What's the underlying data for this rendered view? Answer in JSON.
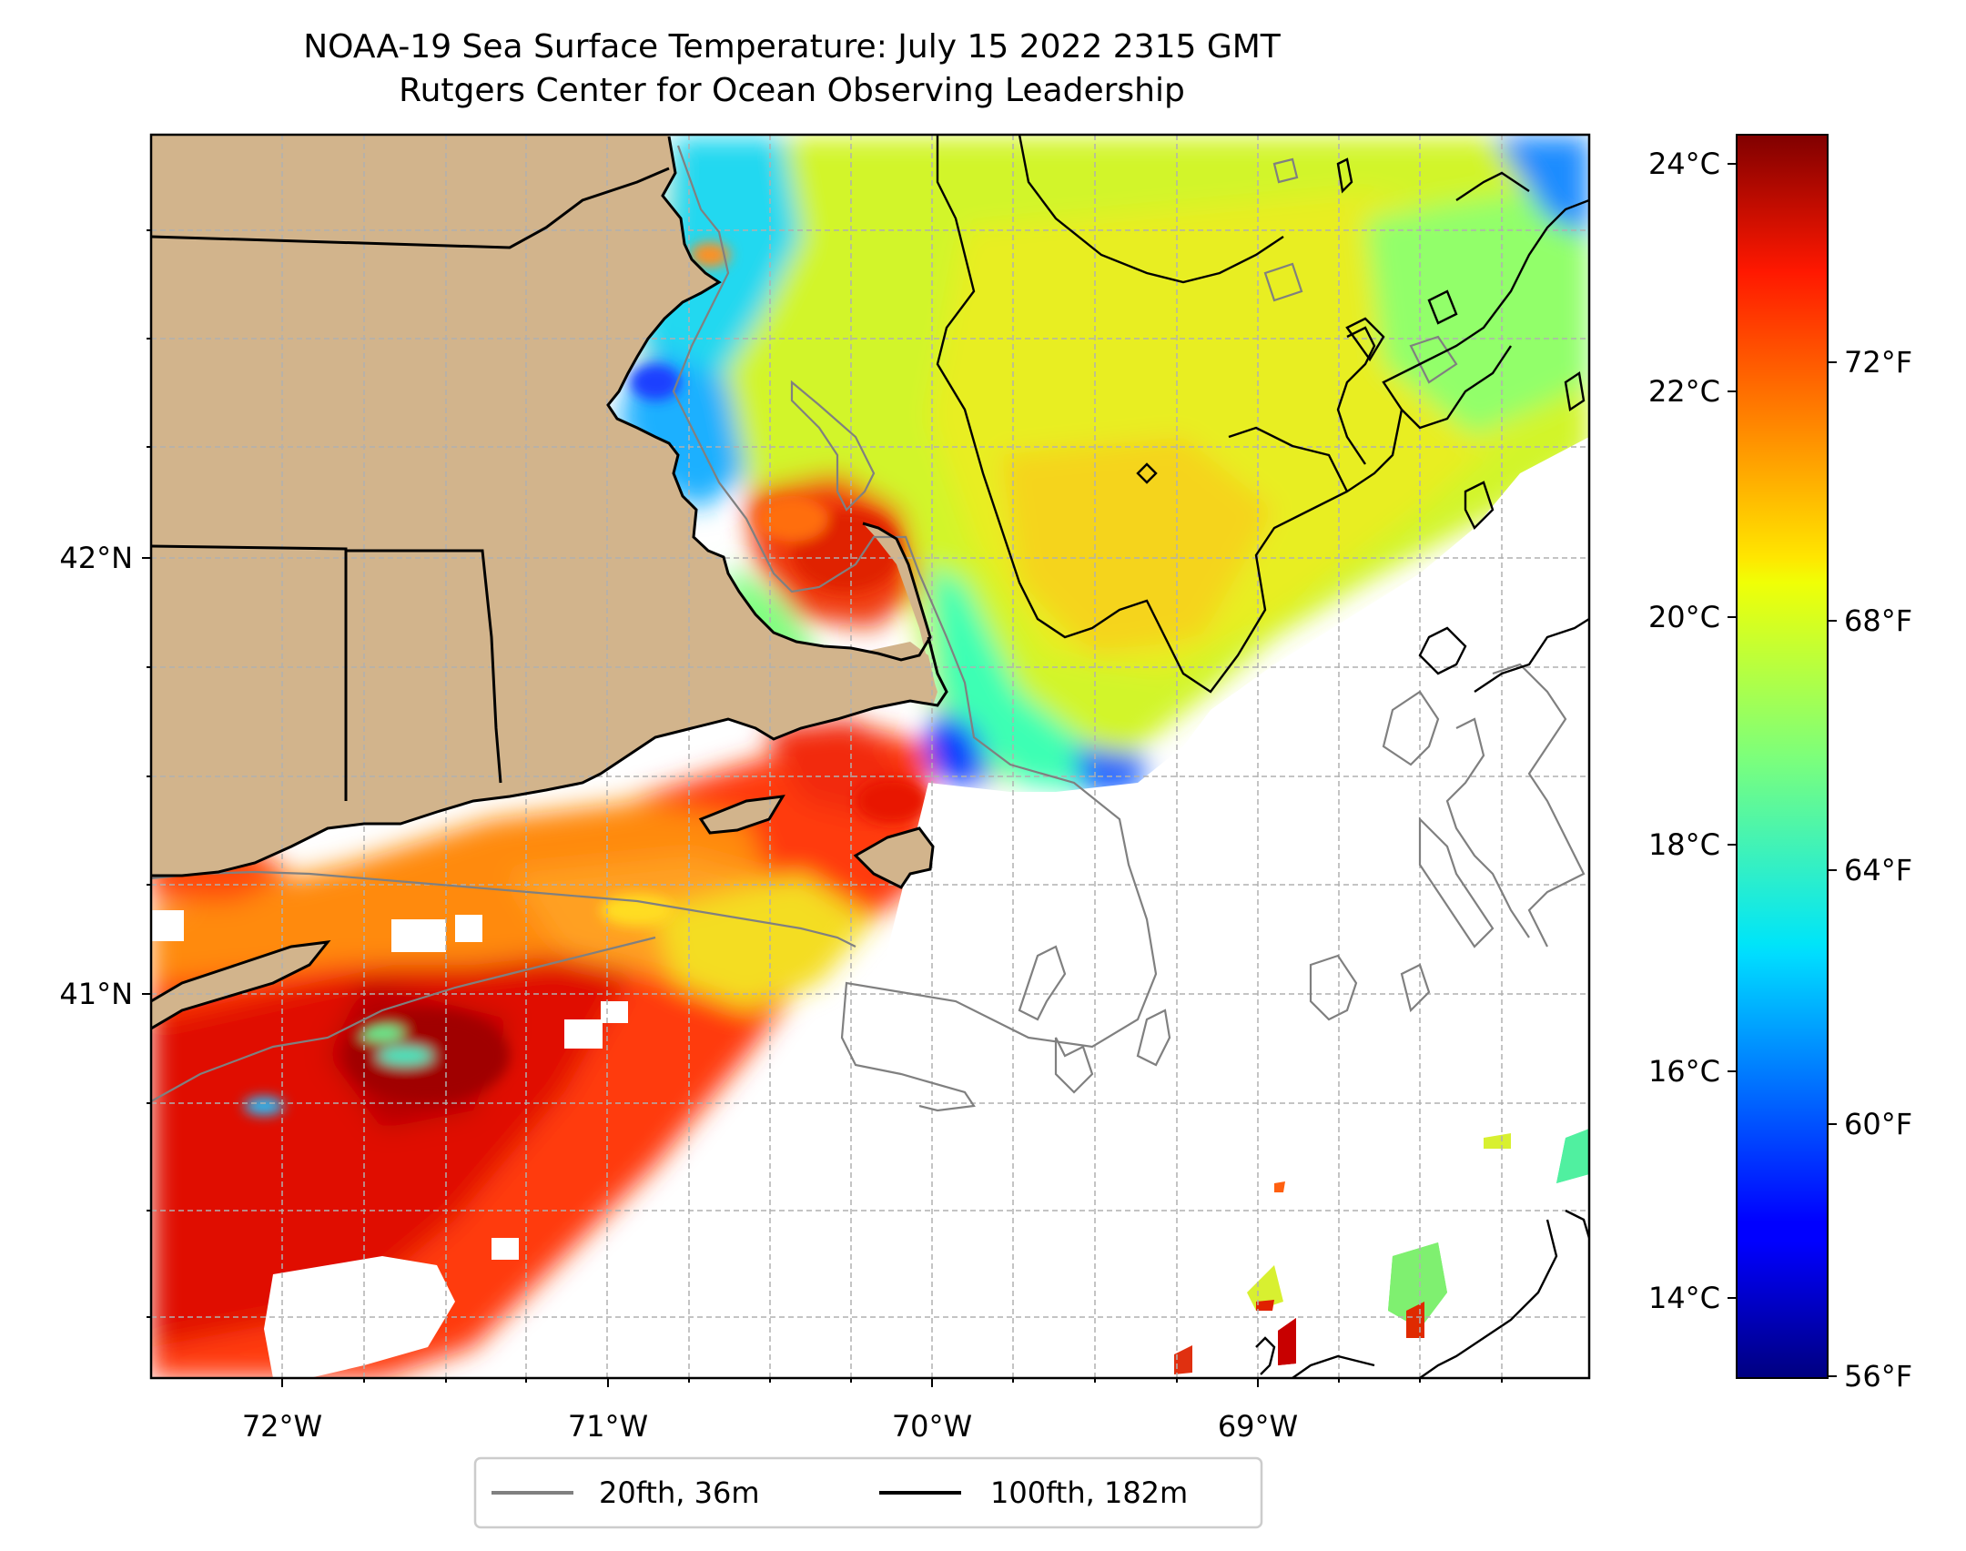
{
  "title": "NOAA-19 Sea Surface Temperature: July 15 2022 2315 GMT",
  "subtitle": "Rutgers Center for Ocean Observing Leadership",
  "map": {
    "lon_range": [
      -72.4,
      -68.0
    ],
    "lat_range": [
      40.15,
      43.0
    ],
    "lon_ticks": [
      {
        "value": -72,
        "label": "72°W"
      },
      {
        "value": -71,
        "label": "71°W"
      },
      {
        "value": -70,
        "label": "70°W"
      },
      {
        "value": -69,
        "label": "69°W"
      }
    ],
    "lat_ticks": [
      {
        "value": 42,
        "label": "42°N"
      },
      {
        "value": 41,
        "label": "41°N"
      }
    ],
    "gridlines": "dashed gray",
    "land_color": "#d2b48c",
    "no_data_color": "#ffffff"
  },
  "colorbar": {
    "colormap": "jet",
    "celsius_ticks": [
      "24°C",
      "22°C",
      "20°C",
      "18°C",
      "16°C",
      "14°C"
    ],
    "fahrenheit_ticks": [
      "72°F",
      "68°F",
      "64°F",
      "60°F",
      "56°F"
    ]
  },
  "legend": {
    "items": [
      {
        "label": "20fth, 36m",
        "color": "#808080"
      },
      {
        "label": "100fth, 182m",
        "color": "#000000"
      }
    ]
  }
}
